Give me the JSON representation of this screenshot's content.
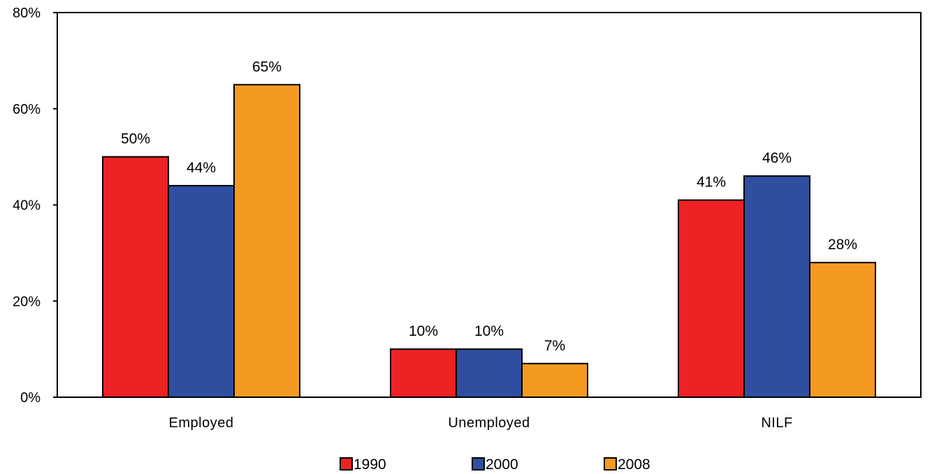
{
  "chart_data": {
    "type": "bar",
    "title": "",
    "xlabel": "",
    "ylabel": "",
    "ylim": [
      0,
      80
    ],
    "yticks": [
      0,
      20,
      40,
      60,
      80
    ],
    "ytick_labels": [
      "0%",
      "20%",
      "40%",
      "60%",
      "80%"
    ],
    "categories": [
      "Employed",
      "Unemployed",
      "NILF"
    ],
    "series": [
      {
        "name": "1990",
        "color": "#ed2224",
        "values": [
          50,
          10,
          41
        ],
        "labels": [
          "50%",
          "10%",
          "41%"
        ]
      },
      {
        "name": "2000",
        "color": "#2f4ea0",
        "values": [
          44,
          10,
          46
        ],
        "labels": [
          "44%",
          "10%",
          "46%"
        ]
      },
      {
        "name": "2008",
        "color": "#f49a20",
        "values": [
          65,
          7,
          28
        ],
        "labels": [
          "65%",
          "7%",
          "28%"
        ]
      }
    ],
    "grid": false,
    "legend_position": "bottom-center"
  }
}
